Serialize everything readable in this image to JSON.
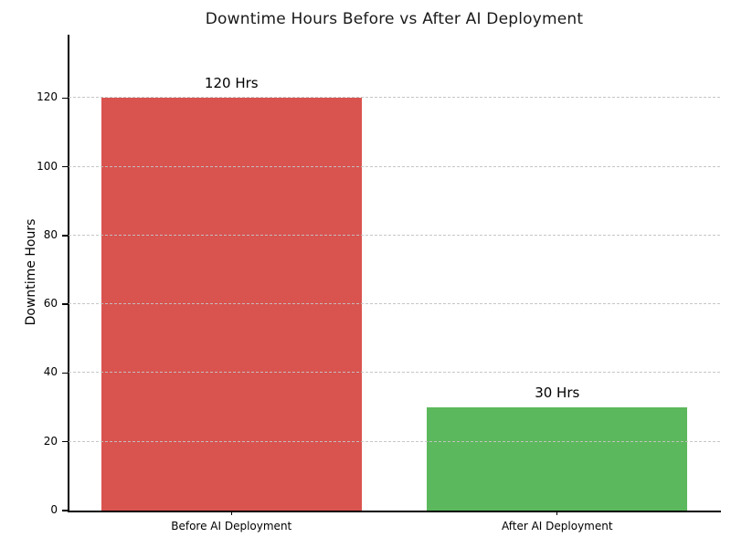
{
  "chart_data": {
    "type": "bar",
    "title": "Downtime Hours Before vs After AI Deployment",
    "categories": [
      "Before AI Deployment",
      "After AI Deployment"
    ],
    "values": [
      120,
      30
    ],
    "bar_labels": [
      "120 Hrs",
      "30 Hrs"
    ],
    "bar_colors": [
      "#d9534f",
      "#5cb85c"
    ],
    "xlabel": "",
    "ylabel": "Downtime Hours",
    "yticks": [
      0,
      20,
      40,
      60,
      80,
      100,
      120
    ],
    "ylim": [
      0,
      138.4
    ],
    "bar_width_fraction": 0.8,
    "grid": {
      "axis": "y",
      "style": "dashed",
      "color": "#c3c3c3",
      "above_bars": true
    },
    "legend": "none",
    "spines": [
      "left",
      "bottom"
    ],
    "background": "#ffffff",
    "title_color": "#1a1a1a",
    "text_color": "#000000"
  }
}
